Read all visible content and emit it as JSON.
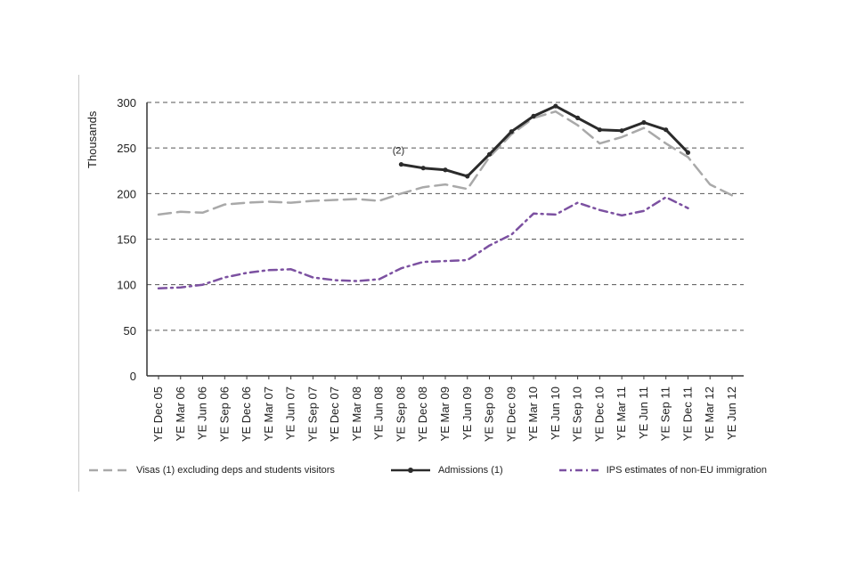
{
  "chart_data": {
    "type": "line",
    "title": "",
    "xlabel": "",
    "ylabel": "Thousands",
    "ylim": [
      0,
      300
    ],
    "ytick_step": 50,
    "grid": "horizontal-dashed",
    "legend_position": "bottom",
    "categories": [
      "YE Dec 05",
      "YE Mar 06",
      "YE Jun 06",
      "YE Sep 06",
      "YE Dec 06",
      "YE Mar 07",
      "YE Jun 07",
      "YE Sep 07",
      "YE Dec 07",
      "YE Mar 08",
      "YE Jun 08",
      "YE Sep 08",
      "YE Dec 08",
      "YE Mar 09",
      "YE Jun 09",
      "YE Sep 09",
      "YE Dec 09",
      "YE Mar 10",
      "YE Jun 10",
      "YE Sep 10",
      "YE Dec 10",
      "YE Mar 11",
      "YE Jun 11",
      "YE Sep 11",
      "YE Dec 11",
      "YE Mar 12",
      "YE Jun 12"
    ],
    "series": [
      {
        "name": "Visas (1) excluding deps and students visitors",
        "color": "#a9a9a9",
        "style": "dashed-long",
        "width": 2.5,
        "values": [
          177,
          180,
          179,
          188,
          190,
          191,
          190,
          192,
          193,
          194,
          192,
          200,
          207,
          210,
          205,
          240,
          265,
          283,
          290,
          275,
          255,
          262,
          272,
          255,
          240,
          210,
          198
        ]
      },
      {
        "name": "Admissions (1)",
        "color": "#2b2b2b",
        "style": "solid-marker",
        "width": 3,
        "values": [
          null,
          null,
          null,
          null,
          null,
          null,
          null,
          null,
          null,
          null,
          null,
          232,
          228,
          226,
          219,
          243,
          268,
          285,
          296,
          283,
          270,
          269,
          278,
          270,
          245,
          null,
          null
        ]
      },
      {
        "name": "IPS estimates of non-EU immigration",
        "color": "#7c51a1",
        "style": "dash-dot",
        "width": 2.5,
        "values": [
          96,
          97,
          100,
          108,
          113,
          116,
          117,
          108,
          105,
          104,
          106,
          118,
          125,
          126,
          127,
          143,
          155,
          178,
          177,
          190,
          182,
          176,
          181,
          196,
          184,
          null,
          null
        ]
      }
    ],
    "annotations": [
      {
        "text": "(2)",
        "series_index": 1,
        "category_index": 11
      }
    ]
  }
}
